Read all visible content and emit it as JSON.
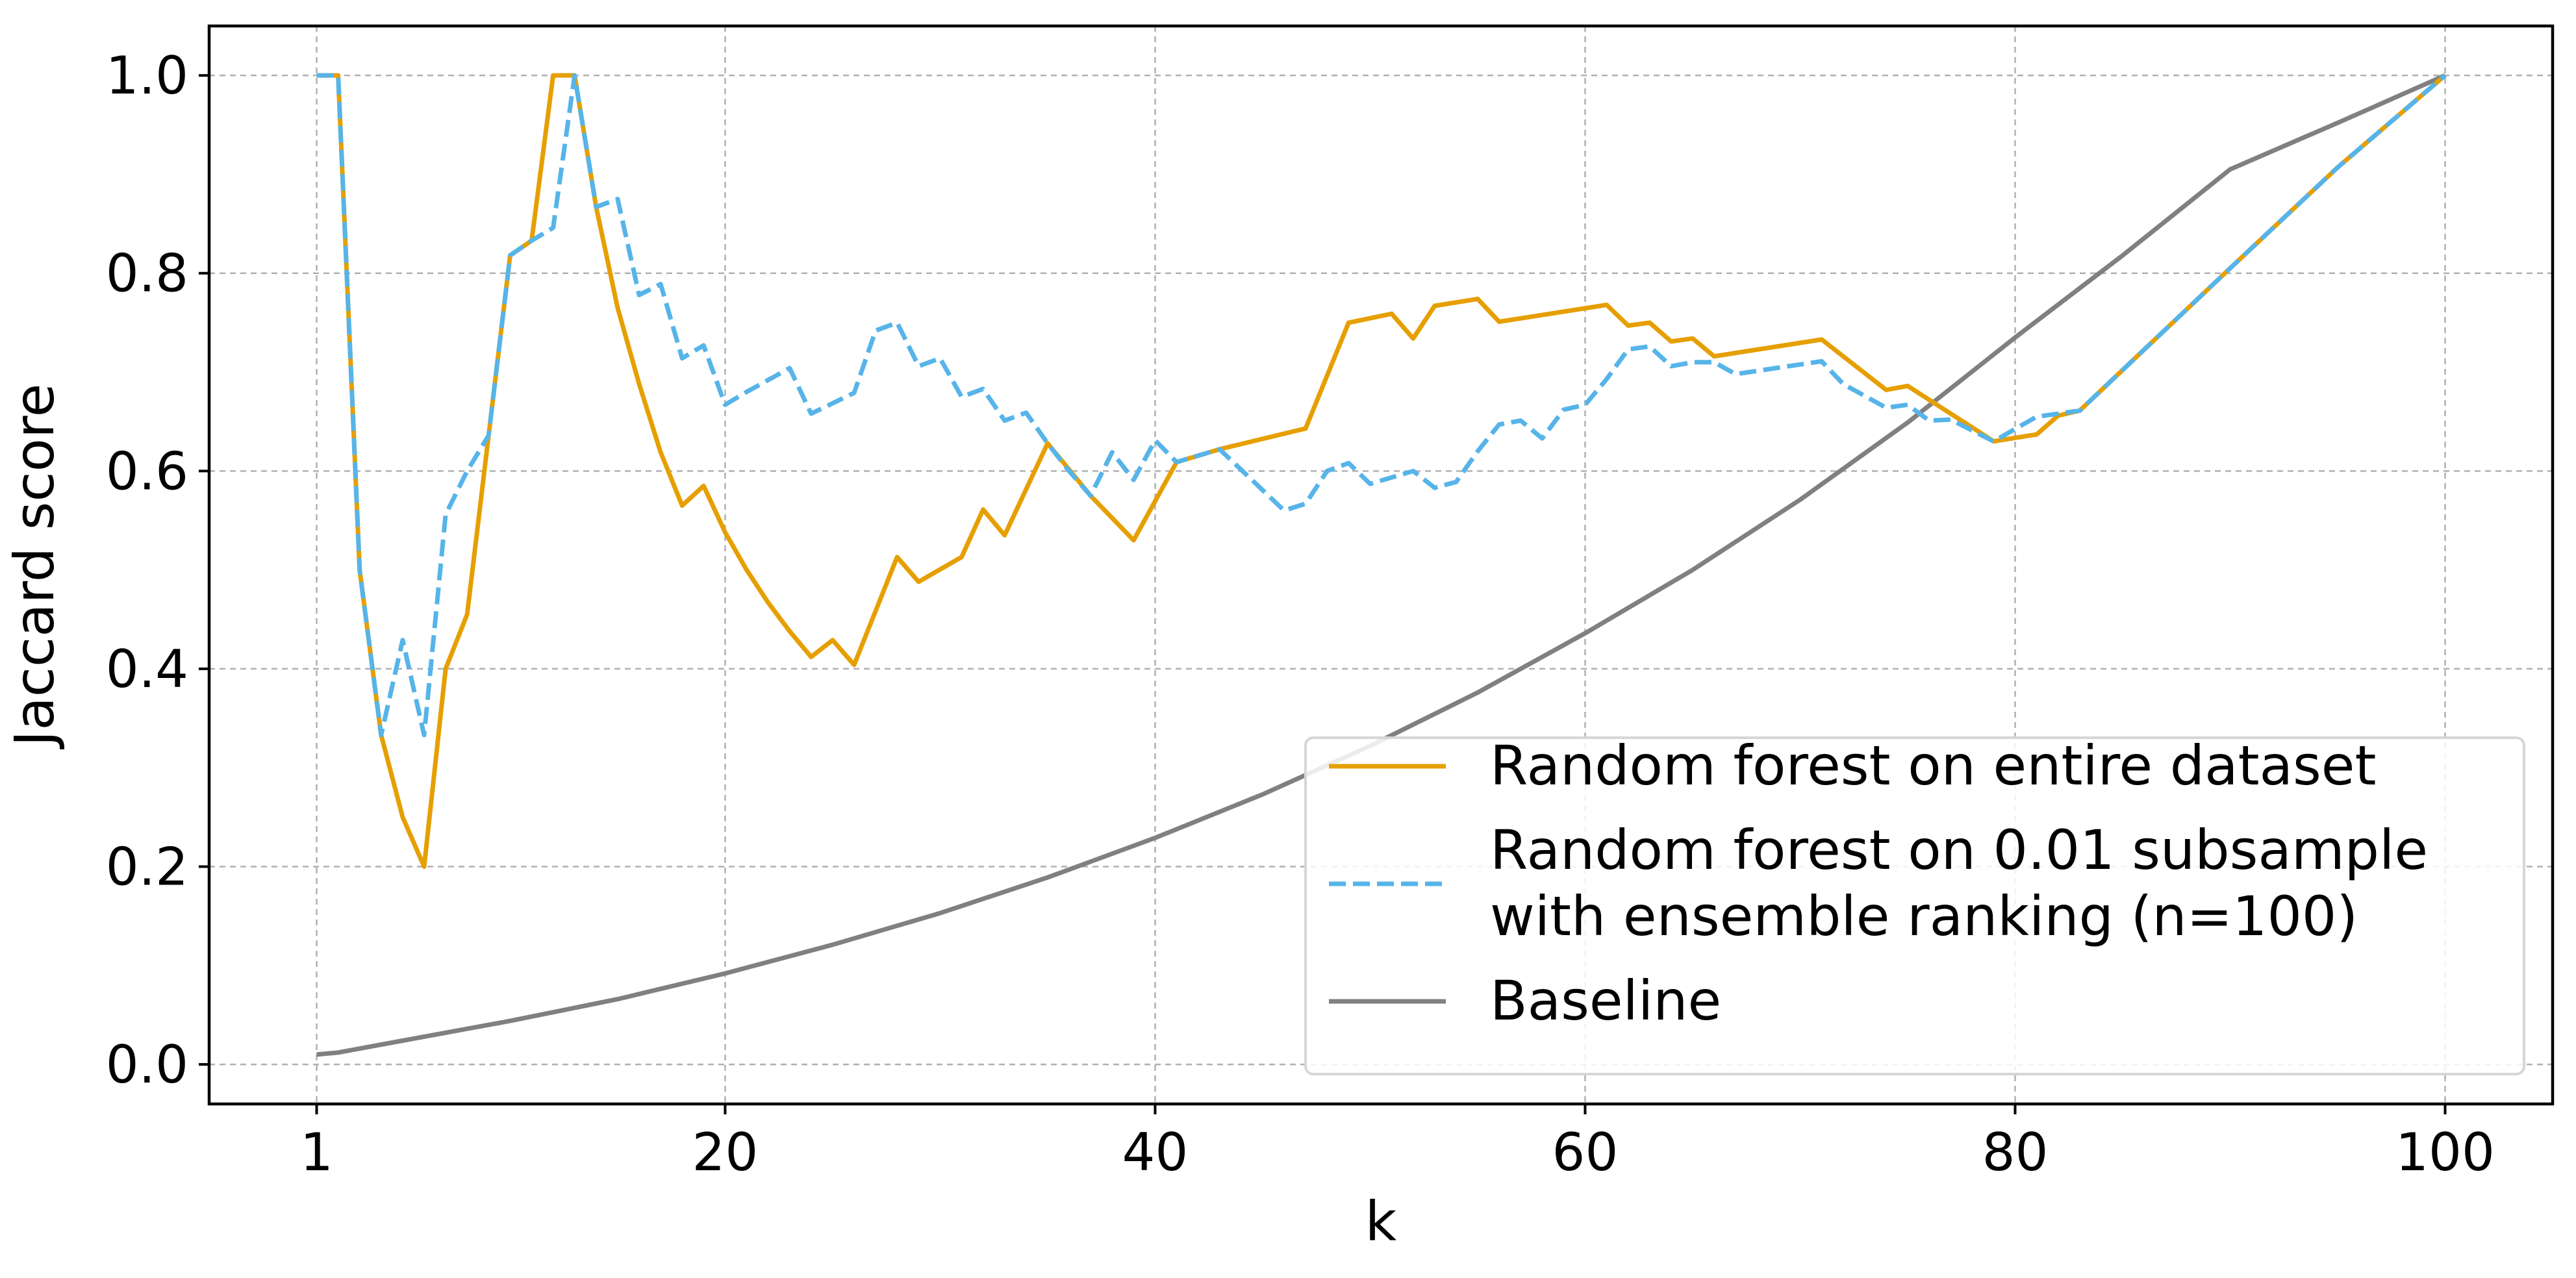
{
  "chart_data": {
    "type": "line",
    "title": "",
    "xlabel": "k",
    "ylabel": "Jaccard score",
    "xlim": [
      -4,
      105
    ],
    "ylim": [
      -0.04,
      1.05
    ],
    "xticks": [
      1,
      20,
      40,
      60,
      80,
      100
    ],
    "xtick_labels": [
      "1",
      "20",
      "40",
      "60",
      "80",
      "100"
    ],
    "yticks": [
      0.0,
      0.2,
      0.4,
      0.6,
      0.8,
      1.0
    ],
    "ytick_labels": [
      "0.0",
      "0.2",
      "0.4",
      "0.6",
      "0.8",
      "1.0"
    ],
    "grid": true,
    "legend_position": "lower-right",
    "series": [
      {
        "name": "Random forest on entire dataset",
        "color": "#E69F00",
        "style": "solid",
        "points": [
          [
            1,
            1.0
          ],
          [
            2,
            1.0
          ],
          [
            3,
            0.5
          ],
          [
            4,
            0.333
          ],
          [
            5,
            0.25
          ],
          [
            6,
            0.2
          ],
          [
            7,
            0.4
          ],
          [
            8,
            0.455
          ],
          [
            9,
            0.636
          ],
          [
            10,
            0.818
          ],
          [
            11,
            0.833
          ],
          [
            12,
            1.0
          ],
          [
            13,
            1.0
          ],
          [
            14,
            0.867
          ],
          [
            15,
            0.765
          ],
          [
            16,
            0.688
          ],
          [
            17,
            0.619
          ],
          [
            18,
            0.565
          ],
          [
            19,
            0.585
          ],
          [
            20,
            0.538
          ],
          [
            21,
            0.5
          ],
          [
            22,
            0.467
          ],
          [
            23,
            0.438
          ],
          [
            24,
            0.412
          ],
          [
            25,
            0.429
          ],
          [
            26,
            0.404
          ],
          [
            28,
            0.513
          ],
          [
            29,
            0.488
          ],
          [
            31,
            0.513
          ],
          [
            32,
            0.561
          ],
          [
            33,
            0.535
          ],
          [
            35,
            0.628
          ],
          [
            37,
            0.575
          ],
          [
            39,
            0.53
          ],
          [
            41,
            0.609
          ],
          [
            43,
            0.622
          ],
          [
            47,
            0.643
          ],
          [
            49,
            0.75
          ],
          [
            51,
            0.759
          ],
          [
            52,
            0.734
          ],
          [
            53,
            0.767
          ],
          [
            55,
            0.774
          ],
          [
            56,
            0.751
          ],
          [
            61,
            0.768
          ],
          [
            62,
            0.747
          ],
          [
            63,
            0.75
          ],
          [
            64,
            0.731
          ],
          [
            65,
            0.734
          ],
          [
            66,
            0.716
          ],
          [
            71,
            0.733
          ],
          [
            74,
            0.682
          ],
          [
            75,
            0.686
          ],
          [
            79,
            0.63
          ],
          [
            81,
            0.637
          ],
          [
            82,
            0.656
          ],
          [
            83,
            0.661
          ],
          [
            90,
            0.805
          ],
          [
            95,
            0.907
          ],
          [
            100,
            1.0
          ]
        ]
      },
      {
        "name": "Random forest on 0.01 subsample\n with ensemble ranking (n=100)",
        "color": "#56B4E9",
        "style": "dashed",
        "points": [
          [
            1,
            1.0
          ],
          [
            2,
            1.0
          ],
          [
            3,
            0.5
          ],
          [
            4,
            0.333
          ],
          [
            5,
            0.429
          ],
          [
            6,
            0.333
          ],
          [
            7,
            0.556
          ],
          [
            8,
            0.6
          ],
          [
            9,
            0.636
          ],
          [
            10,
            0.818
          ],
          [
            11,
            0.833
          ],
          [
            12,
            0.846
          ],
          [
            13,
            1.0
          ],
          [
            14,
            0.867
          ],
          [
            15,
            0.875
          ],
          [
            16,
            0.778
          ],
          [
            17,
            0.789
          ],
          [
            18,
            0.714
          ],
          [
            19,
            0.727
          ],
          [
            20,
            0.667
          ],
          [
            21,
            0.68
          ],
          [
            23,
            0.704
          ],
          [
            24,
            0.658
          ],
          [
            26,
            0.679
          ],
          [
            27,
            0.742
          ],
          [
            28,
            0.75
          ],
          [
            29,
            0.706
          ],
          [
            30,
            0.714
          ],
          [
            31,
            0.675
          ],
          [
            32,
            0.683
          ],
          [
            33,
            0.651
          ],
          [
            34,
            0.659
          ],
          [
            35,
            0.628
          ],
          [
            36,
            0.6
          ],
          [
            37,
            0.575
          ],
          [
            38,
            0.619
          ],
          [
            39,
            0.591
          ],
          [
            40,
            0.631
          ],
          [
            41,
            0.609
          ],
          [
            43,
            0.622
          ],
          [
            46,
            0.56
          ],
          [
            47,
            0.567
          ],
          [
            48,
            0.6
          ],
          [
            49,
            0.608
          ],
          [
            50,
            0.587
          ],
          [
            52,
            0.6
          ],
          [
            53,
            0.583
          ],
          [
            54,
            0.589
          ],
          [
            55,
            0.62
          ],
          [
            56,
            0.647
          ],
          [
            57,
            0.651
          ],
          [
            58,
            0.633
          ],
          [
            59,
            0.662
          ],
          [
            60,
            0.667
          ],
          [
            61,
            0.693
          ],
          [
            62,
            0.723
          ],
          [
            63,
            0.726
          ],
          [
            64,
            0.706
          ],
          [
            65,
            0.71
          ],
          [
            66,
            0.71
          ],
          [
            67,
            0.698
          ],
          [
            71,
            0.711
          ],
          [
            72,
            0.688
          ],
          [
            74,
            0.664
          ],
          [
            75,
            0.667
          ],
          [
            76,
            0.651
          ],
          [
            77,
            0.652
          ],
          [
            79,
            0.63
          ],
          [
            81,
            0.655
          ],
          [
            83,
            0.661
          ],
          [
            90,
            0.805
          ],
          [
            95,
            0.907
          ],
          [
            100,
            1.0
          ]
        ]
      },
      {
        "name": "Baseline",
        "color": "#808080",
        "style": "solid",
        "points": [
          [
            1,
            0.01
          ],
          [
            2,
            0.012
          ],
          [
            3,
            0.016
          ],
          [
            5,
            0.024
          ],
          [
            10,
            0.044
          ],
          [
            15,
            0.066
          ],
          [
            20,
            0.092
          ],
          [
            25,
            0.121
          ],
          [
            30,
            0.153
          ],
          [
            35,
            0.189
          ],
          [
            40,
            0.229
          ],
          [
            45,
            0.273
          ],
          [
            50,
            0.322
          ],
          [
            55,
            0.376
          ],
          [
            60,
            0.436
          ],
          [
            65,
            0.5
          ],
          [
            70,
            0.571
          ],
          [
            75,
            0.649
          ],
          [
            80,
            0.735
          ],
          [
            85,
            0.818
          ],
          [
            90,
            0.905
          ],
          [
            95,
            0.952
          ],
          [
            100,
            1.0
          ]
        ]
      }
    ]
  }
}
